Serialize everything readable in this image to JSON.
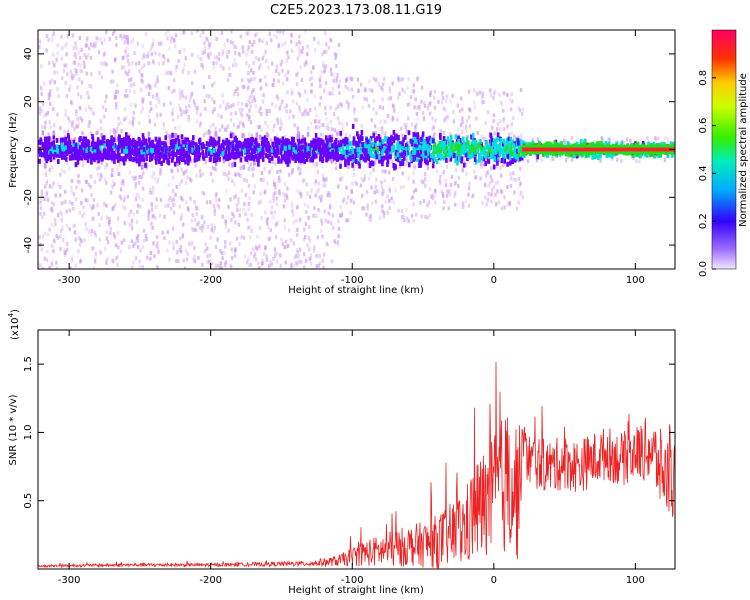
{
  "title": "C2E5.2023.173.08.11.G19",
  "colors": {
    "snr_line": "#ee2222",
    "spectrum_faint": "#cc99ee",
    "spectrum_core": "#6a00ff",
    "spectrum_mid": "#00e0e0",
    "spectrum_high": "#22dd22",
    "spectrum_peak": "#ff2222",
    "axis": "#000000"
  },
  "chart_data": [
    {
      "type": "heatmap",
      "title": "C2E5.2023.173.08.11.G19",
      "xlabel": "Height of straight line (km)",
      "ylabel": "Frequency (Hz)",
      "xlim": [
        -322,
        128
      ],
      "ylim": [
        -50,
        50
      ],
      "x_ticks": [
        "-300",
        "-200",
        "-100",
        "0",
        "100"
      ],
      "y_ticks": [
        "-40",
        "-20",
        "0",
        "20",
        "40"
      ],
      "colorbar": {
        "label": "Normalized spectral amplitude",
        "ticks": [
          "0.0",
          "0.2",
          "0.4",
          "0.6",
          "0.8"
        ],
        "range": [
          0,
          1
        ]
      },
      "bands": [
        {
          "x_start": -322,
          "x_end": -110,
          "core_halfwidth_hz": 8,
          "faint_halfwidth_hz": 50,
          "peak_amplitude": 0.35
        },
        {
          "x_start": -110,
          "x_end": -45,
          "core_halfwidth_hz": 10,
          "faint_halfwidth_hz": 30,
          "peak_amplitude": 0.45
        },
        {
          "x_start": -45,
          "x_end": 20,
          "core_halfwidth_hz": 8,
          "faint_halfwidth_hz": 25,
          "peak_amplitude": 0.6
        },
        {
          "x_start": 20,
          "x_end": 128,
          "core_halfwidth_hz": 4,
          "faint_halfwidth_hz": 5,
          "peak_amplitude": 1.0
        }
      ]
    },
    {
      "type": "line",
      "xlabel": "Height of straight line (km)",
      "ylabel": "SNR (10 * v/v)",
      "y_multiplier": "(x10",
      "y_multiplier_exp": "4",
      "xlim": [
        -322,
        128
      ],
      "ylim": [
        0,
        17500
      ],
      "x_ticks": [
        "-300",
        "-200",
        "-100",
        "0",
        "100"
      ],
      "y_ticks": [
        "0.5",
        "1.0",
        "1.5"
      ],
      "series": [
        {
          "x": [
            -322,
            -300,
            -250,
            -200,
            -160,
            -130,
            -110,
            -100,
            -90,
            -80,
            -70,
            -60,
            -50,
            -40,
            -30,
            -20,
            -15,
            -10,
            -5,
            0,
            5,
            10,
            15,
            18,
            20,
            22,
            25,
            30,
            40,
            50,
            60,
            70,
            80,
            90,
            100,
            110,
            120,
            128
          ],
          "y": [
            200,
            250,
            300,
            300,
            350,
            400,
            600,
            900,
            1200,
            1300,
            1500,
            1700,
            1800,
            2000,
            2500,
            3000,
            4000,
            4500,
            4800,
            5500,
            6000,
            6500,
            6000,
            5500,
            9500,
            8500,
            8000,
            7800,
            7500,
            7800,
            7500,
            8000,
            8500,
            8000,
            8500,
            8800,
            7000,
            6500
          ],
          "spread": [
            80,
            100,
            120,
            120,
            150,
            200,
            400,
            700,
            1000,
            1200,
            1400,
            1500,
            1700,
            2000,
            2400,
            3000,
            3500,
            4000,
            4200,
            4500,
            5000,
            5500,
            5500,
            5000,
            2000,
            2000,
            2000,
            2000,
            2000,
            2000,
            2000,
            2000,
            2000,
            2000,
            2000,
            2500,
            3000,
            3000
          ]
        }
      ]
    }
  ]
}
